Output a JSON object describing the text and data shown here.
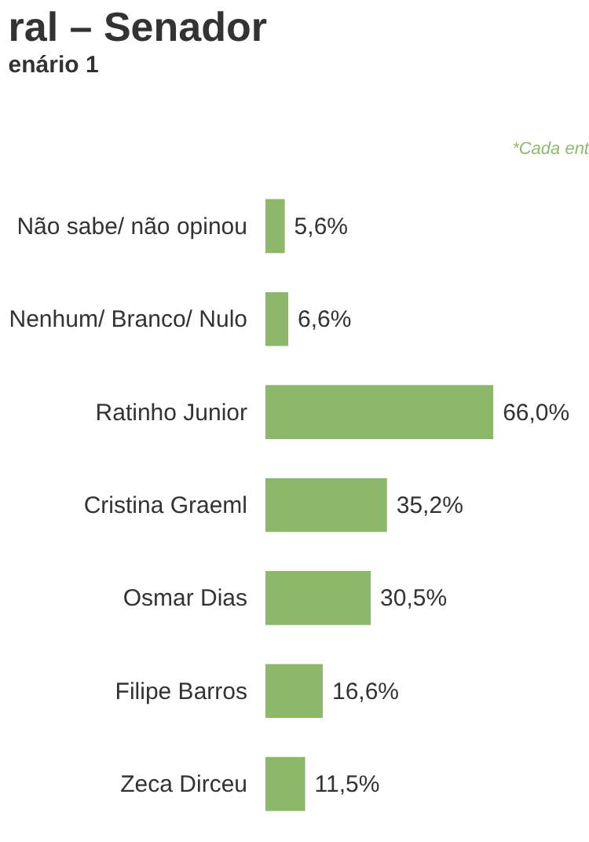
{
  "chart_data": {
    "type": "bar",
    "orientation": "horizontal",
    "title": "ral – Senador",
    "subtitle": "enário 1",
    "annotations": [
      "*Cada ent"
    ],
    "categories": [
      "Não sabe/ não opinou",
      "Nenhum/ Branco/ Nulo",
      "Ratinho Junior",
      "Cristina Graeml",
      "Osmar Dias",
      "Filipe Barros",
      "Zeca Dirceu"
    ],
    "values": [
      5.6,
      6.6,
      66.0,
      35.2,
      30.5,
      16.6,
      11.5
    ],
    "value_labels": [
      "5,6%",
      "6,6%",
      "66,0%",
      "35,2%",
      "30,5%",
      "16,6%",
      "11,5%"
    ],
    "color": "#8db86b",
    "grid": false
  }
}
